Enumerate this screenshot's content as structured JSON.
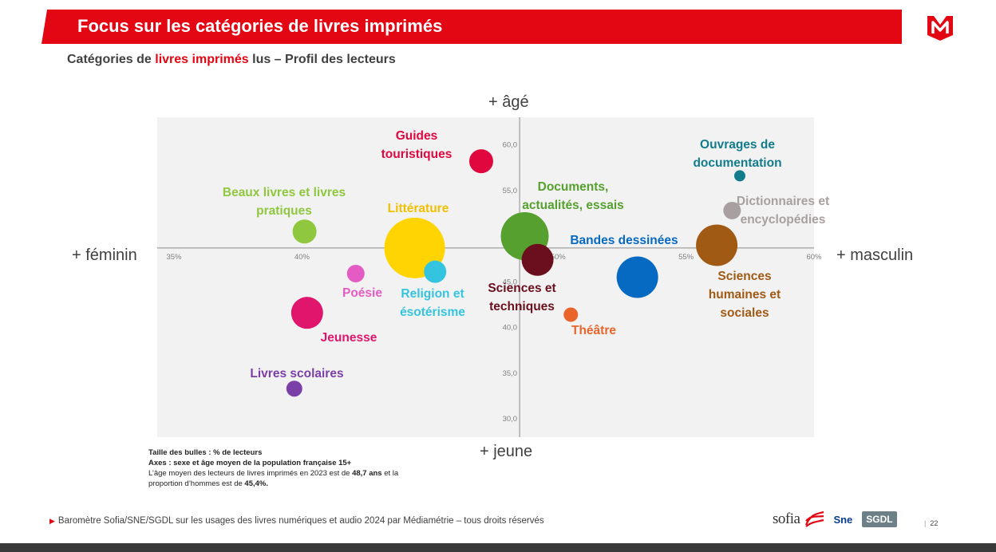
{
  "header": {
    "title": "Focus sur les catégories de livres imprimés",
    "logo_letter": "M",
    "brand_color": "#e30613"
  },
  "subtitle": {
    "part1": "Catégories de ",
    "highlight": "livres imprimés",
    "part2": " lus – Profil des lecteurs"
  },
  "axes_labels": {
    "top": "+ âgé",
    "bottom": "+ jeune",
    "left": "+ féminin",
    "right": "+ masculin"
  },
  "chart_data": {
    "type": "scatter",
    "subtype": "bubble",
    "xlim": [
      35,
      60
    ],
    "ylim": [
      30,
      62.5
    ],
    "x_ticks": [
      "35%",
      "40%",
      "45%",
      "50%",
      "55%",
      "60%"
    ],
    "x_tick_values": [
      35,
      40,
      45,
      50,
      55,
      60
    ],
    "y_ticks": [
      "30,0",
      "35,0",
      "40,0",
      "45,0",
      "50,0",
      "55,0",
      "60,0"
    ],
    "y_tick_values": [
      30,
      35,
      40,
      45,
      50,
      55,
      60
    ],
    "x_cross": 48.5,
    "y_cross": 48.7,
    "points": [
      {
        "label": "Guides touristiques",
        "x": 47.0,
        "y": 58.2,
        "size": 15,
        "color": "#e0073f"
      },
      {
        "label": "Ouvrages de documentation",
        "x": 57.1,
        "y": 56.6,
        "size": 7,
        "color": "#127c8c"
      },
      {
        "label": "Dictionnaires et encyclopédies",
        "x": 56.8,
        "y": 52.8,
        "size": 11,
        "color": "#a8a0a0"
      },
      {
        "label": "Beaux livres et livres pratiques",
        "x": 40.1,
        "y": 50.5,
        "size": 15,
        "color": "#8fc73e"
      },
      {
        "label": "Documents, actualités, essais",
        "x": 48.7,
        "y": 50.0,
        "size": 30,
        "color": "#55a02e"
      },
      {
        "label": "Bandes dessinées",
        "x": 53.1,
        "y": 45.5,
        "size": 26,
        "color": "#0669c2"
      },
      {
        "label": "Sciences humaines et sociales",
        "x": 56.2,
        "y": 49.0,
        "size": 26,
        "color": "#a05a14"
      },
      {
        "label": "Littérature",
        "x": 44.4,
        "y": 48.7,
        "size": 38,
        "color": "#ffd400"
      },
      {
        "label": "Sciences et techniques",
        "x": 49.2,
        "y": 47.4,
        "size": 20,
        "color": "#6b0f1e"
      },
      {
        "label": "Religion et ésotérisme",
        "x": 45.2,
        "y": 46.1,
        "size": 14,
        "color": "#35c4e0"
      },
      {
        "label": "Poésie",
        "x": 42.1,
        "y": 45.9,
        "size": 11,
        "color": "#e55bc4"
      },
      {
        "label": "Théâtre",
        "x": 50.5,
        "y": 41.4,
        "size": 9,
        "color": "#e8642a"
      },
      {
        "label": "Jeunesse",
        "x": 40.2,
        "y": 41.6,
        "size": 20,
        "color": "#e0166d"
      },
      {
        "label": "Livres scolaires",
        "x": 39.7,
        "y": 33.3,
        "size": 10,
        "color": "#7b3fa8"
      }
    ],
    "labels": [
      {
        "text": "Guides",
        "color": "#e0073f"
      },
      {
        "text": "touristiques",
        "color": "#e0073f"
      },
      {
        "text": "Ouvrages de",
        "color": "#127c8c"
      },
      {
        "text": "documentation",
        "color": "#127c8c"
      },
      {
        "text": "Dictionnaires et",
        "color": "#a8a0a0"
      },
      {
        "text": "encyclopédies",
        "color": "#a8a0a0"
      },
      {
        "text": "Beaux livres et livres",
        "color": "#8fc73e"
      },
      {
        "text": "pratiques",
        "color": "#8fc73e"
      },
      {
        "text": "Littérature",
        "color": "#f0c000"
      },
      {
        "text": "Documents,",
        "color": "#55a02e"
      },
      {
        "text": "actualités, essais",
        "color": "#55a02e"
      },
      {
        "text": "Bandes dessinées",
        "color": "#0669c2"
      },
      {
        "text": "Sciences",
        "color": "#a05a14"
      },
      {
        "text": "humaines et",
        "color": "#a05a14"
      },
      {
        "text": "sociales",
        "color": "#a05a14"
      },
      {
        "text": "Sciences et",
        "color": "#6b0f1e"
      },
      {
        "text": "techniques",
        "color": "#6b0f1e"
      },
      {
        "text": "Religion et",
        "color": "#35c4e0"
      },
      {
        "text": "ésotérisme",
        "color": "#35c4e0"
      },
      {
        "text": "Poésie",
        "color": "#e55bc4"
      },
      {
        "text": "Théâtre",
        "color": "#e8642a"
      },
      {
        "text": "Jeunesse",
        "color": "#e0166d"
      },
      {
        "text": "Livres scolaires",
        "color": "#7b3fa8"
      }
    ]
  },
  "notes": {
    "line1_bold": "Taille des bulles  : % de lecteurs",
    "line2_bold": "Axes  : sexe et âge moyen de la population française 15+",
    "line3_pre": "L’âge moyen des lecteurs de livres imprimés en 2023 est de ",
    "line3_bold": "48,7 ans",
    "line3_post": " et la",
    "line4_pre": "proportion d’hommes est de ",
    "line4_bold": "45,4%."
  },
  "footer": {
    "source": "Baromètre Sofia/SNE/SGDL sur les usages des livres numériques et audio 2024 par Médiamétrie – tous droits réservés",
    "page_number": "22",
    "partners": [
      "sofia",
      "Sne",
      "SGDL"
    ]
  }
}
